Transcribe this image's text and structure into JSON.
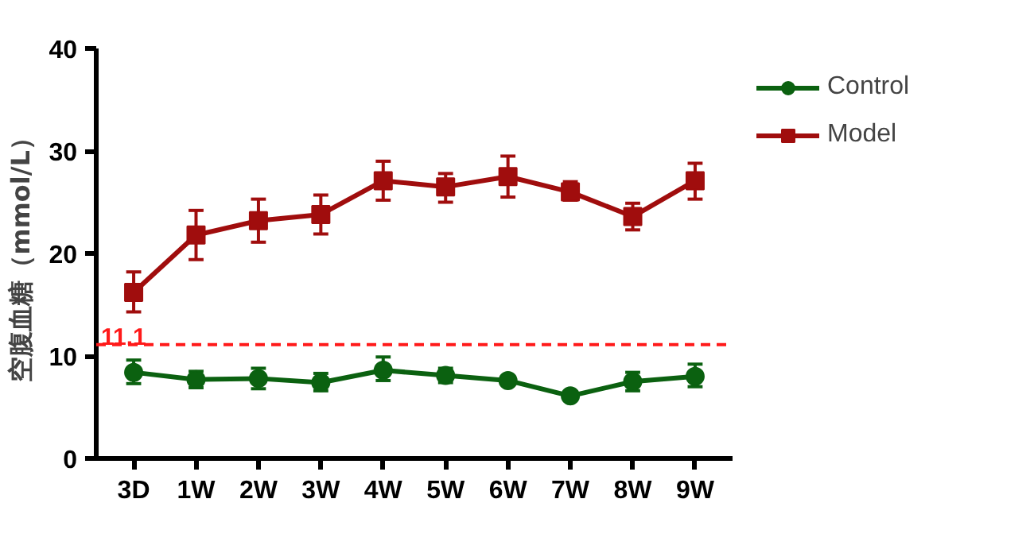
{
  "chart_data": {
    "type": "line",
    "ylabel": "空腹血糖（mmol/L）",
    "categories": [
      "3D",
      "1W",
      "2W",
      "3W",
      "4W",
      "5W",
      "6W",
      "7W",
      "8W",
      "9W"
    ],
    "series": [
      {
        "name": "Control",
        "color": "#0b6110",
        "marker": "circle",
        "values": [
          8.4,
          7.7,
          7.8,
          7.4,
          8.6,
          8.1,
          7.6,
          6.1,
          7.5,
          8.0
        ],
        "errors": [
          [
            7.3,
            9.6
          ],
          [
            6.9,
            8.5
          ],
          [
            6.8,
            8.8
          ],
          [
            6.6,
            8.3
          ],
          [
            7.6,
            9.9
          ],
          [
            7.4,
            8.8
          ],
          null,
          null,
          [
            6.6,
            8.4
          ],
          [
            7.0,
            9.2
          ]
        ]
      },
      {
        "name": "Model",
        "color": "#a00d0d",
        "marker": "square",
        "values": [
          16.2,
          21.8,
          23.2,
          23.8,
          27.1,
          26.5,
          27.5,
          26.0,
          23.6,
          27.1
        ],
        "errors": [
          [
            14.3,
            18.2
          ],
          [
            19.4,
            24.2
          ],
          [
            21.1,
            25.3
          ],
          [
            21.9,
            25.7
          ],
          [
            25.2,
            29.0
          ],
          [
            25.0,
            27.8
          ],
          [
            25.5,
            29.5
          ],
          [
            25.2,
            27.0
          ],
          [
            22.3,
            24.9
          ],
          [
            25.3,
            28.8
          ]
        ]
      }
    ],
    "ylim": [
      0,
      40
    ],
    "yticks": [
      0,
      10,
      20,
      30,
      40
    ],
    "grid": false,
    "legend": "top right",
    "line_style": "solid",
    "ref_lines": [
      {
        "axis": "y",
        "value": 11.1,
        "label": "11.1",
        "color": "#ff1a1a",
        "line_style": "dashed"
      }
    ]
  }
}
